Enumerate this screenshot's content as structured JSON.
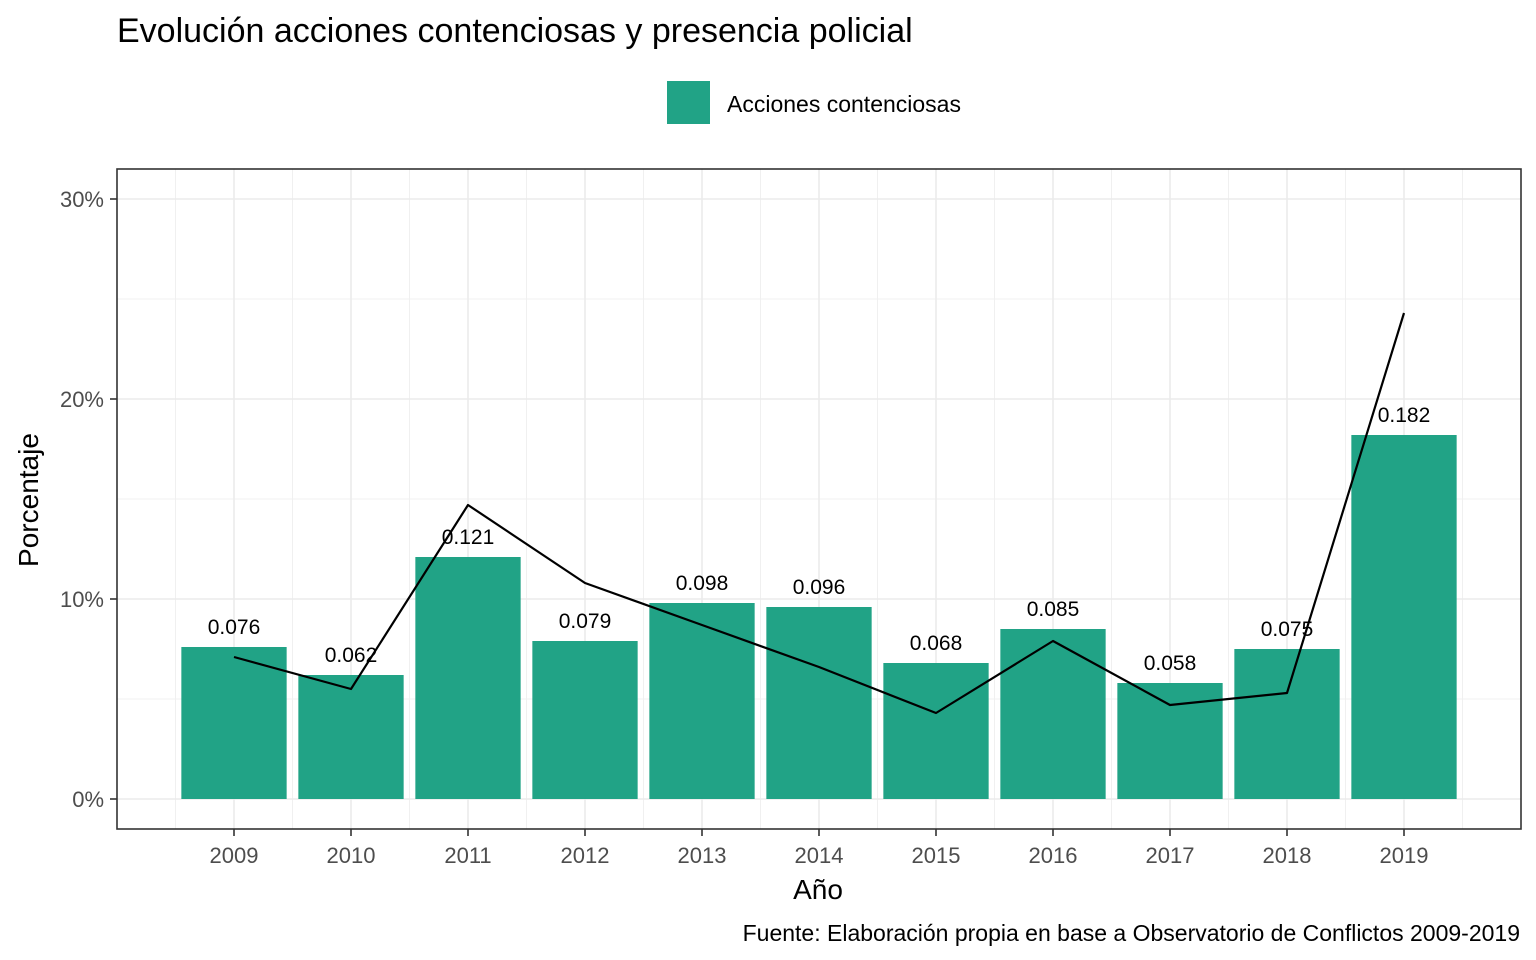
{
  "chart_data": {
    "type": "bar",
    "title": "Evolución acciones contenciosas y presencia policial",
    "xlabel": "Año",
    "ylabel": "Porcentaje",
    "caption": "Fuente: Elaboración propia en base a Observatorio de Conflictos 2009-2019",
    "categories": [
      "2009",
      "2010",
      "2011",
      "2012",
      "2013",
      "2014",
      "2015",
      "2016",
      "2017",
      "2018",
      "2019"
    ],
    "series": [
      {
        "name": "Acciones contenciosas",
        "type": "bar",
        "color": "#21a386",
        "values": [
          0.076,
          0.062,
          0.121,
          0.079,
          0.098,
          0.096,
          0.068,
          0.085,
          0.058,
          0.075,
          0.182
        ],
        "labels": [
          "0.076",
          "0.062",
          "0.121",
          "0.079",
          "0.098",
          "0.096",
          "0.068",
          "0.085",
          "0.058",
          "0.075",
          "0.182"
        ]
      },
      {
        "type": "line",
        "color": "#000000",
        "values": [
          0.071,
          0.055,
          0.147,
          0.108,
          0.087,
          0.066,
          0.043,
          0.079,
          0.047,
          0.053,
          0.243
        ]
      }
    ],
    "ylim": [
      -0.015,
      0.315
    ],
    "yticks": [
      0,
      0.1,
      0.2,
      0.3
    ],
    "ytick_labels": [
      "0%",
      "10%",
      "20%",
      "30%"
    ],
    "grid": true,
    "legend_position": "top"
  }
}
